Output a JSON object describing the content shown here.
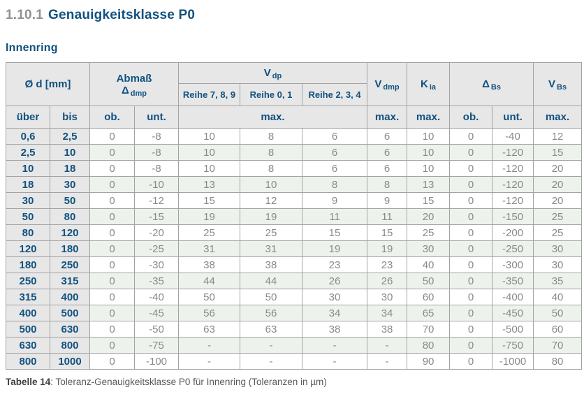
{
  "page": {
    "title_number": "1.10.1",
    "title_text": "Genauigkeitsklasse P0",
    "section_title": "Innenring",
    "caption_label": "Tabelle 14",
    "caption_text": ": Toleranz-Genauigkeitsklasse P0 für Innenring (Toleranzen in µm)"
  },
  "colors": {
    "heading_blue": "#11517f",
    "title_number_gray": "#8f9295",
    "header_bg": "#e7e7e7",
    "row_green": "#edf3ec",
    "border_gray": "#a3a3a3",
    "data_text": "#898989"
  },
  "table": {
    "header": {
      "od": "Ø d  [mm]",
      "abmass_line1": "Abmaß",
      "abmass_sym": "Δ",
      "abmass_sub": "dmp",
      "vdp": {
        "main": "V",
        "sub": "dp"
      },
      "reihe_789": "Reihe 7, 8, 9",
      "reihe_01": "Reihe 0, 1",
      "reihe_234": "Reihe 2, 3, 4",
      "vdmp": {
        "main": "V",
        "sub": "dmp"
      },
      "kia": {
        "main": "K",
        "sub": "ia"
      },
      "dbs": {
        "main": "Δ",
        "sub": "Bs"
      },
      "vbs": {
        "main": "V",
        "sub": "Bs"
      },
      "sub_row": [
        "über",
        "bis",
        "ob.",
        "unt.",
        "max.",
        "max.",
        "max.",
        "ob.",
        "unt.",
        "max."
      ]
    },
    "rows": [
      [
        "0,6",
        "2,5",
        "0",
        "-8",
        "10",
        "8",
        "6",
        "6",
        "10",
        "0",
        "-40",
        "12"
      ],
      [
        "2,5",
        "10",
        "0",
        "-8",
        "10",
        "8",
        "6",
        "6",
        "10",
        "0",
        "-120",
        "15"
      ],
      [
        "10",
        "18",
        "0",
        "-8",
        "10",
        "8",
        "6",
        "6",
        "10",
        "0",
        "-120",
        "20"
      ],
      [
        "18",
        "30",
        "0",
        "-10",
        "13",
        "10",
        "8",
        "8",
        "13",
        "0",
        "-120",
        "20"
      ],
      [
        "30",
        "50",
        "0",
        "-12",
        "15",
        "12",
        "9",
        "9",
        "15",
        "0",
        "-120",
        "20"
      ],
      [
        "50",
        "80",
        "0",
        "-15",
        "19",
        "19",
        "11",
        "11",
        "20",
        "0",
        "-150",
        "25"
      ],
      [
        "80",
        "120",
        "0",
        "-20",
        "25",
        "25",
        "15",
        "15",
        "25",
        "0",
        "-200",
        "25"
      ],
      [
        "120",
        "180",
        "0",
        "-25",
        "31",
        "31",
        "19",
        "19",
        "30",
        "0",
        "-250",
        "30"
      ],
      [
        "180",
        "250",
        "0",
        "-30",
        "38",
        "38",
        "23",
        "23",
        "40",
        "0",
        "-300",
        "30"
      ],
      [
        "250",
        "315",
        "0",
        "-35",
        "44",
        "44",
        "26",
        "26",
        "50",
        "0",
        "-350",
        "35"
      ],
      [
        "315",
        "400",
        "0",
        "-40",
        "50",
        "50",
        "30",
        "30",
        "60",
        "0",
        "-400",
        "40"
      ],
      [
        "400",
        "500",
        "0",
        "-45",
        "56",
        "56",
        "34",
        "34",
        "65",
        "0",
        "-450",
        "50"
      ],
      [
        "500",
        "630",
        "0",
        "-50",
        "63",
        "63",
        "38",
        "38",
        "70",
        "0",
        "-500",
        "60"
      ],
      [
        "630",
        "800",
        "0",
        "-75",
        "-",
        "-",
        "-",
        "-",
        "80",
        "0",
        "-750",
        "70"
      ],
      [
        "800",
        "1000",
        "0",
        "-100",
        "-",
        "-",
        "-",
        "-",
        "90",
        "0",
        "-1000",
        "80"
      ]
    ]
  }
}
